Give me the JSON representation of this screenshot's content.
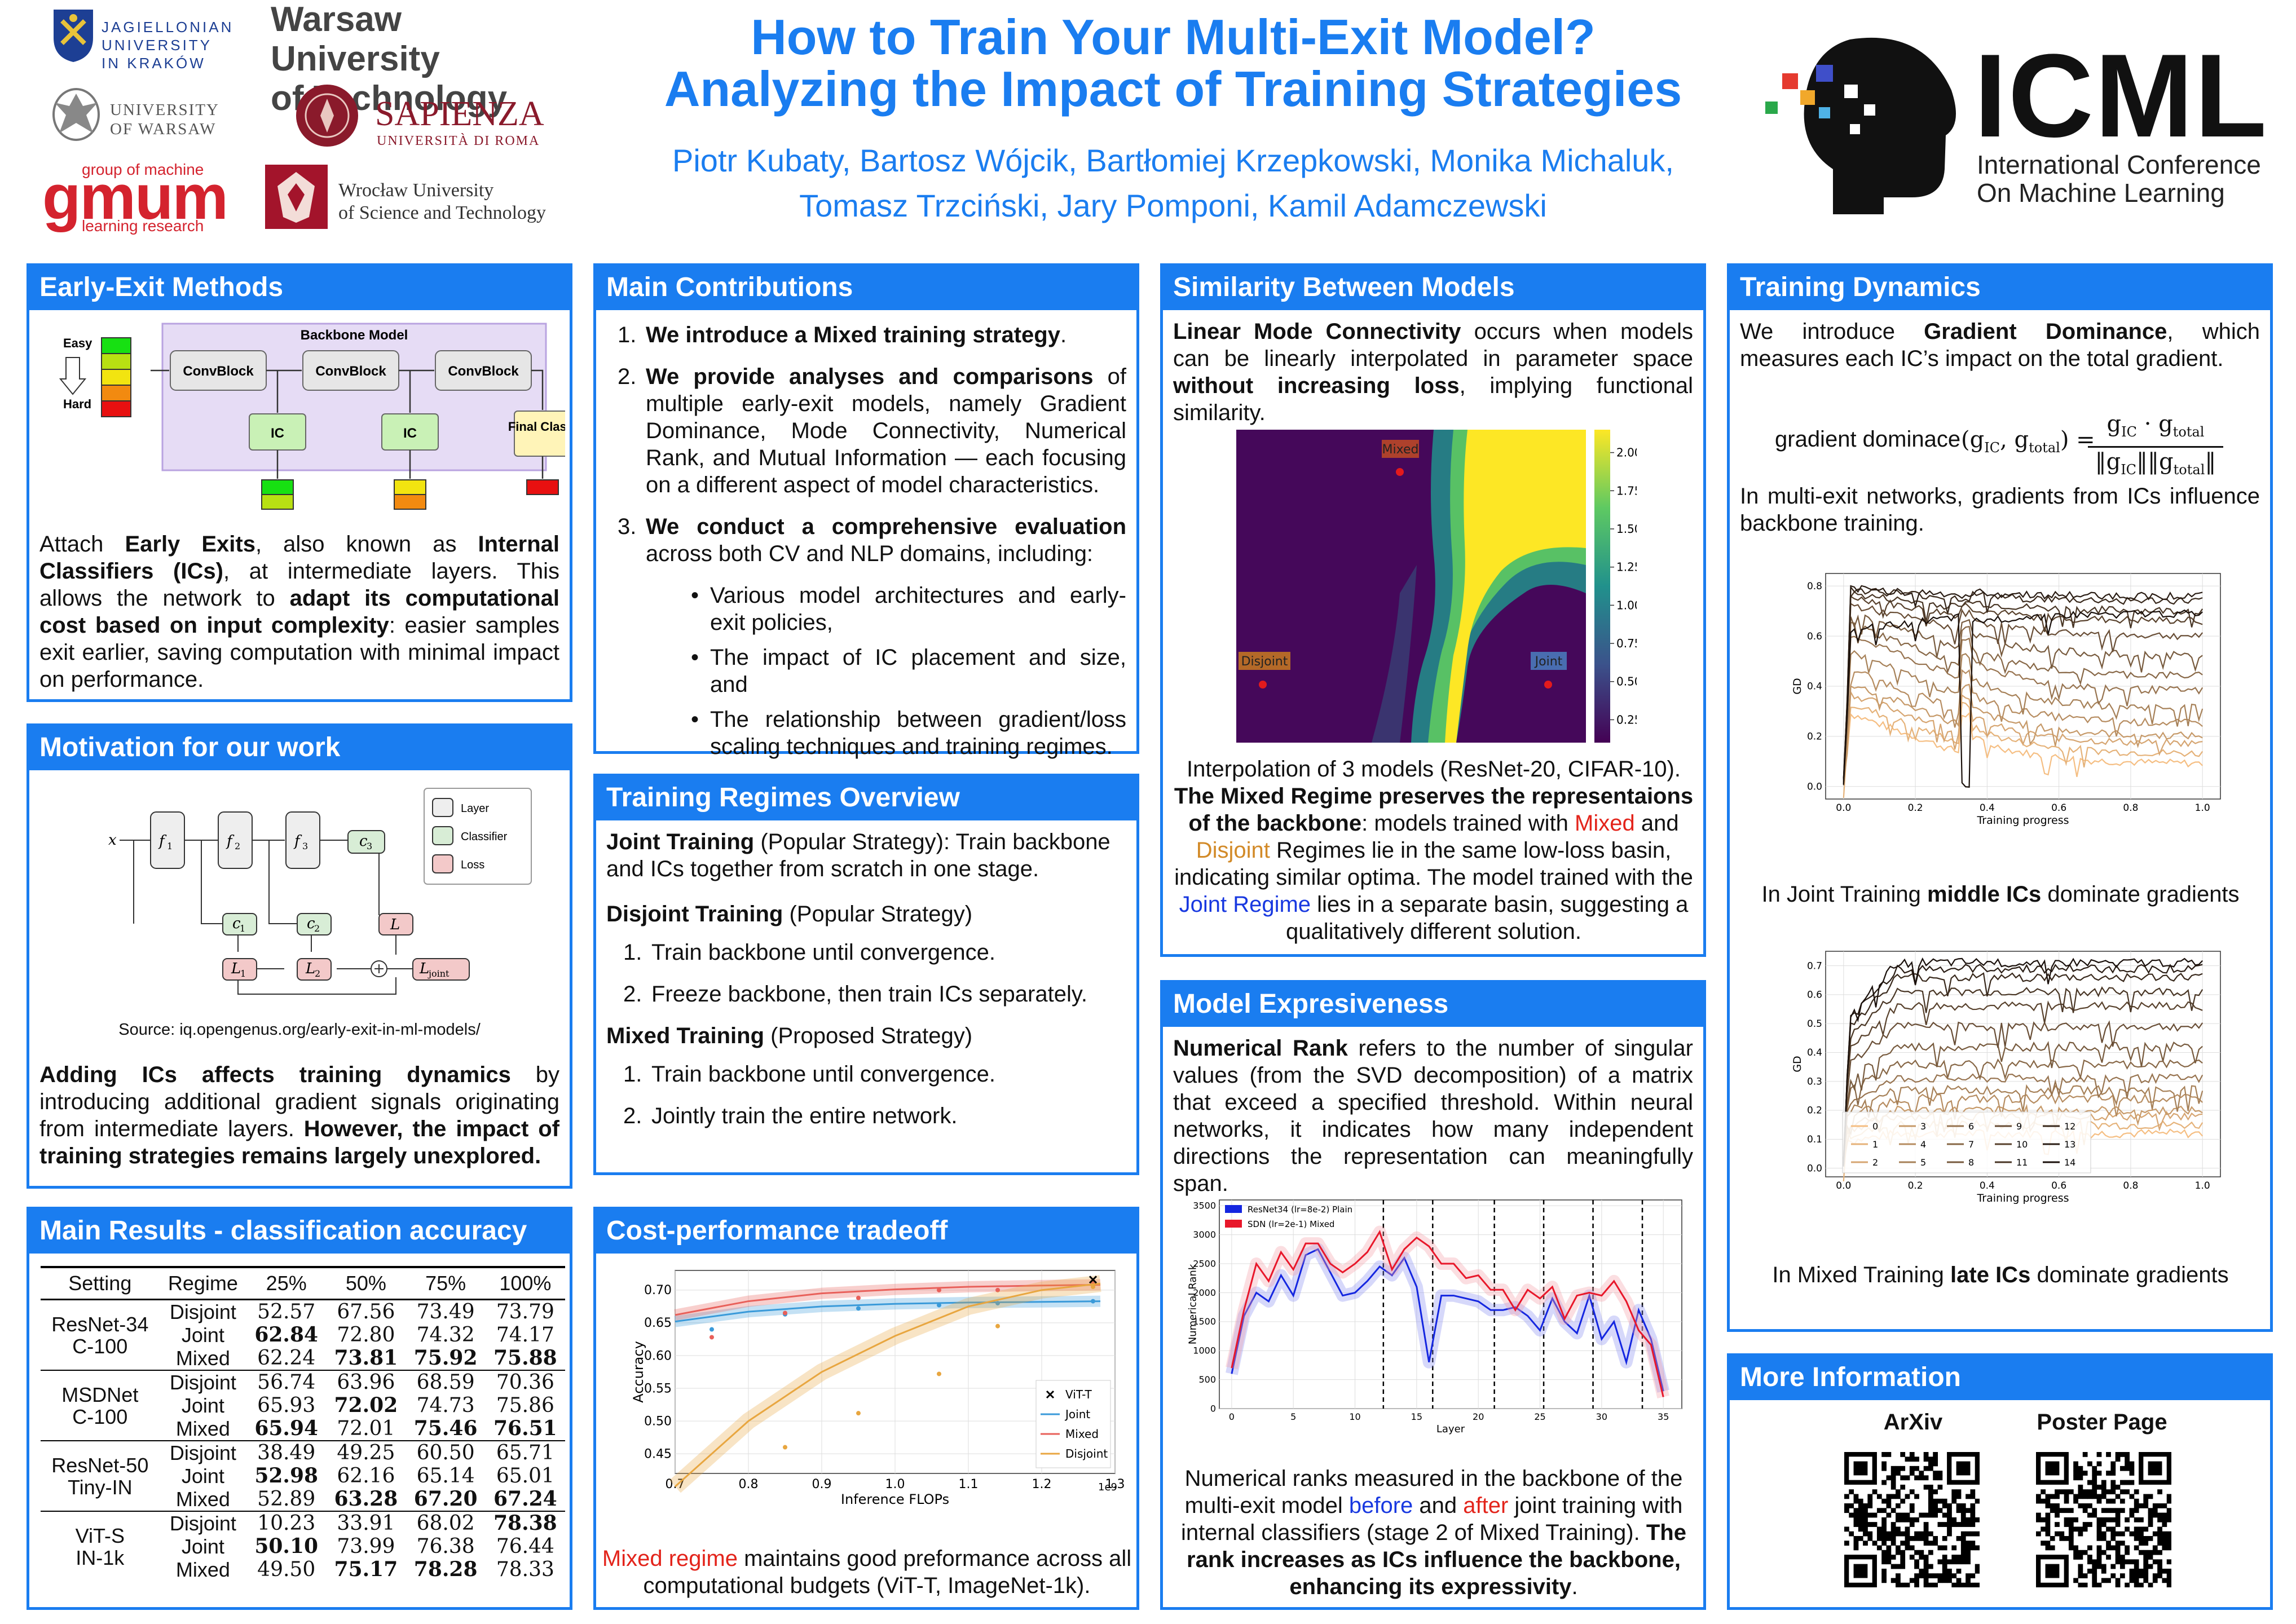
{
  "header": {
    "title_line1": "How to Train Your Multi-Exit Model?",
    "title_line2": "Analyzing the Impact of Training Strategies",
    "authors_line1": "Piotr Kubaty, Bartosz Wójcik, Bartłomiej Krzepkowski, Monika Michaluk,",
    "authors_line2": "Tomasz Trzciński, Jary Pomponi, Kamil Adamczewski"
  },
  "logos": {
    "jagiellonian": [
      "JAGIELLONIAN",
      "UNIVERSITY",
      "IN KRAKÓW"
    ],
    "warsaw_univ": [
      "UNIVERSITY",
      "OF WARSAW"
    ],
    "gmum": {
      "top": "group of machine",
      "main": "gmum",
      "bottom": "learning research"
    },
    "wut": [
      "Warsaw University",
      "of Technology"
    ],
    "sapienza": [
      "SAPIENZA",
      "UNIVERSITÀ DI ROMA"
    ],
    "wroclaw": [
      "Wrocław University",
      "of Science and Technology"
    ],
    "icml": {
      "main": "ICML",
      "sub1": "International Conference",
      "sub2": "On Machine Learning"
    }
  },
  "early_exit": {
    "title": "Early-Exit Methods",
    "diagram": {
      "backbone": "Backbone Model",
      "block": "ConvBlock",
      "ic": "IC",
      "final": "Final Class.",
      "easy": "Easy",
      "hard": "Hard"
    },
    "text_p1": "Attach ",
    "text_b1": "Early Exits",
    "text_p2": ", also known as ",
    "text_b2": "Internal Classifiers (ICs)",
    "text_p3": ", at intermediate layers.  This allows the network to ",
    "text_b3": "adapt its computational cost based on input complexity",
    "text_p4": ":  easier samples exit earlier, saving computation with minimal impact on performance."
  },
  "motivation": {
    "title": "Motivation for our work",
    "legend": [
      "Layer",
      "Classifier",
      "Loss"
    ],
    "nodes": {
      "x": "x",
      "f1": "f",
      "f2": "f",
      "f3": "f",
      "s1": "1",
      "s2": "2",
      "s3": "3",
      "c": "c",
      "L": "L",
      "Ljoint": "joint"
    },
    "source": "Source: iq.opengenus.org/early-exit-in-ml-models/",
    "b1": "Adding ICs affects training dynamics",
    "t1": " by introducing additional gradient signals originating from intermediate layers.  ",
    "b2": "However, the impact of training strategies remains largely unexplored."
  },
  "main_results": {
    "title": "Main Results - classification accuracy",
    "headers": [
      "Setting",
      "Regime",
      "25%",
      "50%",
      "75%",
      "100%"
    ],
    "groups": [
      {
        "setting": [
          "ResNet-34",
          "C-100"
        ],
        "rows": [
          {
            "regime": "Disjoint",
            "vals": [
              "52.57",
              "67.56",
              "73.49",
              "73.79"
            ],
            "bold": [
              false,
              false,
              false,
              false
            ]
          },
          {
            "regime": "Joint",
            "vals": [
              "62.84",
              "72.80",
              "74.32",
              "74.17"
            ],
            "bold": [
              true,
              false,
              false,
              false
            ]
          },
          {
            "regime": "Mixed",
            "vals": [
              "62.24",
              "73.81",
              "75.92",
              "75.88"
            ],
            "bold": [
              false,
              true,
              true,
              true
            ]
          }
        ]
      },
      {
        "setting": [
          "MSDNet",
          "C-100"
        ],
        "rows": [
          {
            "regime": "Disjoint",
            "vals": [
              "56.74",
              "63.96",
              "68.59",
              "70.36"
            ],
            "bold": [
              false,
              false,
              false,
              false
            ]
          },
          {
            "regime": "Joint",
            "vals": [
              "65.93",
              "72.02",
              "74.73",
              "75.86"
            ],
            "bold": [
              false,
              true,
              false,
              false
            ]
          },
          {
            "regime": "Mixed",
            "vals": [
              "65.94",
              "72.01",
              "75.46",
              "76.51"
            ],
            "bold": [
              true,
              false,
              true,
              true
            ]
          }
        ]
      },
      {
        "setting": [
          "ResNet-50",
          "Tiny-IN"
        ],
        "rows": [
          {
            "regime": "Disjoint",
            "vals": [
              "38.49",
              "49.25",
              "60.50",
              "65.71"
            ],
            "bold": [
              false,
              false,
              false,
              false
            ]
          },
          {
            "regime": "Joint",
            "vals": [
              "52.98",
              "62.16",
              "65.14",
              "65.01"
            ],
            "bold": [
              true,
              false,
              false,
              false
            ]
          },
          {
            "regime": "Mixed",
            "vals": [
              "52.89",
              "63.28",
              "67.20",
              "67.24"
            ],
            "bold": [
              false,
              true,
              true,
              true
            ]
          }
        ]
      },
      {
        "setting": [
          "ViT-S",
          "IN-1k"
        ],
        "rows": [
          {
            "regime": "Disjoint",
            "vals": [
              "10.23",
              "33.91",
              "68.02",
              "78.38"
            ],
            "bold": [
              false,
              false,
              false,
              true
            ]
          },
          {
            "regime": "Joint",
            "vals": [
              "50.10",
              "73.99",
              "76.38",
              "76.44"
            ],
            "bold": [
              true,
              false,
              false,
              false
            ]
          },
          {
            "regime": "Mixed",
            "vals": [
              "49.50",
              "75.17",
              "78.28",
              "78.33"
            ],
            "bold": [
              false,
              true,
              true,
              false
            ]
          }
        ]
      }
    ]
  },
  "contributions": {
    "title": "Main Contributions",
    "c1_b": "We introduce a Mixed training strategy",
    "c1_t": ".",
    "c2_b": "We provide analyses and comparisons",
    "c2_t": " of multiple early-exit models, namely Gradient Dominance, Mode Connectivity, Numerical Rank, and Mutual Information — each focusing on a different aspect of model characteristics.",
    "c3_b": "We conduct a comprehensive evaluation",
    "c3_t": " across both CV and NLP domains, including:",
    "bullets": [
      "Various model architectures and early-exit policies,",
      "The impact of IC placement and size, and",
      "The relationship between gradient/loss scaling techniques and training regimes."
    ]
  },
  "regimes": {
    "title": "Training Regimes Overview",
    "joint_b": "Joint Training",
    "joint_t": " (Popular Strategy):  Train backbone and ICs together from scratch in one stage.",
    "disjoint_b": "Disjoint Training",
    "disjoint_t": " (Popular Strategy)",
    "disjoint_steps": [
      "Train backbone until convergence.",
      "Freeze backbone, then train ICs separately."
    ],
    "mixed_b": "Mixed Training",
    "mixed_t": " (Proposed Strategy)",
    "mixed_steps": [
      "Train backbone until convergence.",
      "Jointly train the entire network."
    ]
  },
  "cost": {
    "title": "Cost-performance tradeoff",
    "cap_red": "Mixed regime",
    "cap_t": " maintains good preformance across all computational budgets (ViT-T, ImageNet-1k)."
  },
  "similarity": {
    "title": "Similarity Between Models",
    "p_b1": "Linear Mode Connectivity",
    "p_t1": " occurs when models can be linearly interpolated in parameter space ",
    "p_b2": "without increasing loss",
    "p_t2": ", implying functional similarity.",
    "labels": {
      "mixed": "Mixed",
      "disjoint": "Disjoint",
      "joint": "Joint"
    },
    "colorbar": [
      "2.00",
      "1.75",
      "1.50",
      "1.25",
      "1.00",
      "0.75",
      "0.50",
      "0.25"
    ],
    "cap1": "Interpolation of 3 models (ResNet-20, CIFAR-10).",
    "cap2_b": "The Mixed Regime preserves the representaions of the backbone",
    "cap3": ": models trained with ",
    "cap_mixed": "Mixed",
    "cap4": " and ",
    "cap_disjoint": "Disjoint",
    "cap5": " Regimes lie in the same low-loss basin, indicating similar optima. The model trained with the ",
    "cap_joint": "Joint Regime",
    "cap6": " lies in a separate basin, suggesting a qualitatively different solution."
  },
  "expressiveness": {
    "title": "Model Expresiveness",
    "p_b": "Numerical Rank",
    "p_t": " refers to the number of singular values (from the SVD decomposition) of a matrix that exceed a specified threshold. Within neural networks, it indicates how many independent directions the representation can meaningfully span.",
    "cap1": "Numerical ranks measured in the backbone of the multi-exit model ",
    "cap_before": "before",
    "cap2": " and ",
    "cap_after": "after",
    "cap3": " joint training with internal classifiers (stage 2 of Mixed Training). ",
    "cap_b": "The rank increases as ICs influence the backbone, enhancing its expressivity",
    "cap4": "."
  },
  "dynamics": {
    "title": "Training Dynamics",
    "p_t1": "We introduce ",
    "p_b": "Gradient Dominance",
    "p_t2": ", which measures each IC’s impact on the total gradient.",
    "formula_lhs": "gradient dominace",
    "p2": "In multi-exit networks, gradients from ICs influence backbone training.",
    "cap1_t": "In Joint Training ",
    "cap1_b": "middle ICs",
    "cap1_t2": " dominate gradients",
    "cap2_t": "In Mixed Training ",
    "cap2_b": "late ICs",
    "cap2_t2": " dominate gradients"
  },
  "more": {
    "title": "More Information",
    "arxiv": "ArXiv",
    "poster": "Poster Page"
  },
  "chart_data": [
    {
      "type": "line",
      "id": "cost-performance",
      "xlabel": "Inference FLOPs",
      "ylabel": "Accuracy",
      "x_multiplier": "1e9",
      "xlim": [
        0.7,
        1.3
      ],
      "ylim": [
        0.42,
        0.73
      ],
      "xticks": [
        "0.7",
        "0.8",
        "0.9",
        "1.0",
        "1.1",
        "1.2",
        "1.3"
      ],
      "yticks": [
        "0.45",
        "0.50",
        "0.55",
        "0.60",
        "0.65",
        "0.70"
      ],
      "legend": [
        "ViT-T",
        "Joint",
        "Mixed",
        "Disjoint"
      ],
      "series": [
        {
          "name": "Joint",
          "color": "#3a9ad9",
          "curve_x": [
            0.7,
            0.8,
            0.9,
            1.0,
            1.1,
            1.2,
            1.28
          ],
          "curve_y": [
            0.652,
            0.667,
            0.675,
            0.679,
            0.681,
            0.682,
            0.683
          ],
          "points_x": [
            0.75,
            0.85,
            0.95,
            1.06,
            1.14,
            1.27
          ],
          "points_y": [
            0.64,
            0.663,
            0.672,
            0.677,
            0.68,
            0.683
          ]
        },
        {
          "name": "Mixed",
          "color": "#e8605a",
          "curve_x": [
            0.7,
            0.8,
            0.9,
            1.0,
            1.1,
            1.2,
            1.28
          ],
          "curve_y": [
            0.662,
            0.683,
            0.695,
            0.701,
            0.705,
            0.707,
            0.708
          ],
          "points_x": [
            0.75,
            0.85,
            0.95,
            1.06,
            1.14,
            1.27
          ],
          "points_y": [
            0.628,
            0.665,
            0.688,
            0.7,
            0.7,
            0.711
          ]
        },
        {
          "name": "Disjoint",
          "color": "#e8a640",
          "curve_x": [
            0.7,
            0.8,
            0.9,
            1.0,
            1.1,
            1.2,
            1.28
          ],
          "curve_y": [
            0.4,
            0.5,
            0.575,
            0.63,
            0.675,
            0.7,
            0.71
          ],
          "points_x": [
            0.85,
            0.95,
            1.06,
            1.14,
            1.27
          ],
          "points_y": [
            0.46,
            0.512,
            0.572,
            0.645,
            0.705
          ]
        },
        {
          "name": "ViT-T",
          "color": "#000000",
          "points_x": [
            1.27
          ],
          "points_y": [
            0.716
          ]
        }
      ]
    },
    {
      "type": "line",
      "id": "numerical-rank",
      "xlabel": "Layer",
      "ylabel": "Numerical Rank",
      "xlim": [
        -1,
        36.5
      ],
      "ylim": [
        0,
        3600
      ],
      "xticks": [
        "0",
        "5",
        "10",
        "15",
        "20",
        "25",
        "30",
        "35"
      ],
      "yticks": [
        "0",
        "500",
        "1000",
        "1500",
        "2000",
        "2500",
        "3000",
        "3500"
      ],
      "legend": [
        "ResNet34 (lr=8e-2) Plain",
        "SDN (lr=2e-1) Mixed"
      ],
      "ic_layers": [
        12.3,
        16.3,
        21.3,
        25.3,
        29.3,
        33.3
      ],
      "series": [
        {
          "name": "ResNet34 (lr=8e-2) Plain",
          "color": "#1426e0",
          "x": [
            0,
            1,
            2,
            3,
            4,
            5,
            6,
            7,
            8,
            9,
            10,
            11,
            12,
            13,
            14,
            15,
            16,
            17,
            18,
            19,
            20,
            21,
            22,
            23,
            24,
            25,
            26,
            27,
            28,
            29,
            30,
            31,
            32,
            33,
            34,
            35
          ],
          "y": [
            600,
            1600,
            2000,
            1850,
            2300,
            1950,
            2650,
            2750,
            2350,
            1950,
            2000,
            2200,
            2450,
            2300,
            2600,
            2100,
            800,
            1950,
            1950,
            1900,
            1850,
            1700,
            1700,
            1750,
            1600,
            1350,
            1900,
            1500,
            1300,
            1950,
            1200,
            1500,
            800,
            1700,
            1200,
            300
          ]
        },
        {
          "name": "SDN (lr=2e-1) Mixed",
          "color": "#e8172a",
          "x": [
            0,
            1,
            2,
            3,
            4,
            5,
            6,
            7,
            8,
            9,
            10,
            11,
            12,
            13,
            14,
            15,
            16,
            17,
            18,
            19,
            20,
            21,
            22,
            23,
            24,
            25,
            26,
            27,
            28,
            29,
            30,
            31,
            32,
            33,
            34,
            35
          ],
          "y": [
            700,
            1700,
            2500,
            2200,
            2700,
            2400,
            2850,
            2850,
            2500,
            2350,
            2500,
            2700,
            3050,
            2400,
            2750,
            2950,
            2800,
            2500,
            2500,
            2250,
            2300,
            2050,
            2050,
            1700,
            2050,
            1900,
            2100,
            1550,
            1950,
            2000,
            1950,
            2200,
            1850,
            1350,
            1100,
            200
          ]
        }
      ]
    },
    {
      "type": "line",
      "id": "gd-joint",
      "xlabel": "Training progress",
      "ylabel": "GD",
      "xlim": [
        -0.05,
        1.05
      ],
      "ylim": [
        -0.05,
        0.85
      ],
      "xticks": [
        "0.0",
        "0.2",
        "0.4",
        "0.6",
        "0.8",
        "1.0"
      ],
      "yticks": [
        "0.0",
        "0.2",
        "0.4",
        "0.6",
        "0.8"
      ],
      "series_final": [
        0.09,
        0.13,
        0.17,
        0.2,
        0.25,
        0.31,
        0.38,
        0.44,
        0.52,
        0.6,
        0.66,
        0.7,
        0.74,
        0.76,
        0.69
      ],
      "series_initial": [
        0.3,
        0.34,
        0.38,
        0.42,
        0.48,
        0.55,
        0.62,
        0.66,
        0.7,
        0.73,
        0.76,
        0.77,
        0.79,
        0.79,
        0.62
      ]
    },
    {
      "type": "line",
      "id": "gd-mixed",
      "xlabel": "Training progress",
      "ylabel": "GD",
      "xlim": [
        -0.05,
        1.05
      ],
      "ylim": [
        -0.03,
        0.75
      ],
      "xticks": [
        "0.0",
        "0.2",
        "0.4",
        "0.6",
        "0.8",
        "1.0"
      ],
      "yticks": [
        "0.0",
        "0.1",
        "0.2",
        "0.3",
        "0.4",
        "0.5",
        "0.6",
        "0.7"
      ],
      "legend": [
        "0",
        "1",
        "2",
        "3",
        "4",
        "5",
        "6",
        "7",
        "8",
        "9",
        "10",
        "11",
        "12",
        "13",
        "14"
      ],
      "series_final": [
        0.12,
        0.15,
        0.18,
        0.2,
        0.24,
        0.27,
        0.31,
        0.36,
        0.42,
        0.49,
        0.56,
        0.61,
        0.66,
        0.69,
        0.71
      ]
    }
  ]
}
